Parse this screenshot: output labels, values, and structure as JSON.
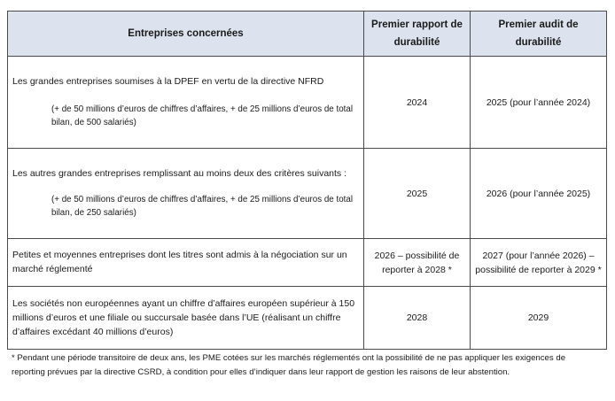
{
  "table": {
    "headers": [
      "Entreprises concernées",
      "Premier rapport de durabilité",
      "Premier audit de durabilité"
    ],
    "rows": [
      {
        "description": "Les grandes entreprises soumises à la DPEF en vertu de la directive NFRD",
        "detail": "(+ de 50 millions d’euros de chiffres d’affaires, + de 25 millions d’euros de total bilan, de 500 salariés)",
        "rapport": "2024",
        "audit": "2025 (pour l’année 2024)"
      },
      {
        "description": "Les autres grandes entreprises remplissant au moins deux des critères suivants :",
        "detail": "(+ de 50 millions d’euros de chiffres d’affaires, + de 25 millions d’euros de total bilan, de 250 salariés)",
        "rapport": "2025",
        "audit": "2026 (pour l’année 2025)"
      },
      {
        "description": "Petites et moyennes entreprises dont les titres sont admis à la négociation sur un marché réglementé",
        "detail": "",
        "rapport": "2026 – possibilité de reporter à 2028 *",
        "audit": "2027 (pour l’année 2026) – possibilité de reporter à 2029 *"
      },
      {
        "description": "Les sociétés non européennes ayant un chiffre d’affaires européen supérieur à 150 millions d’euros et une filiale ou succursale basée dans l’UE (réalisant un chiffre d’affaires excédant 40 millions d’euros)",
        "detail": "",
        "rapport": "2028",
        "audit": "2029"
      }
    ]
  },
  "footnote": "* Pendant une période transitoire de deux ans, les PME cotées sur les marchés réglementés ont la possibilité de ne pas appliquer les exigences de reporting prévues par la directive CSRD, à condition pour elles d’indiquer dans leur rapport de gestion les raisons de leur abstention."
}
